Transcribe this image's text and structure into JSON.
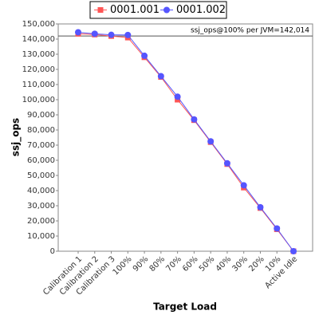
{
  "chart_data": {
    "type": "line",
    "x_label": "Target Load",
    "y_label": "ssj_ops",
    "annotation": "ssj_ops@100% per JVM=142,014",
    "reference_line": 142014,
    "categories": [
      "Calibration 1",
      "Calibration 2",
      "Calibration 3",
      "100%",
      "90%",
      "80%",
      "70%",
      "60%",
      "50%",
      "40%",
      "30%",
      "20%",
      "10%",
      "Active Idle"
    ],
    "series": [
      {
        "name": "0001.001",
        "color": "#ff5555",
        "marker": "square",
        "values": [
          143500,
          143000,
          142000,
          141000,
          128000,
          115000,
          100000,
          86500,
          72000,
          57500,
          42000,
          28500,
          14500,
          0
        ]
      },
      {
        "name": "0001.002",
        "color": "#5555ff",
        "marker": "circle",
        "values": [
          144500,
          143500,
          142800,
          142700,
          129000,
          115500,
          102000,
          87000,
          72500,
          58000,
          43500,
          29000,
          15000,
          0
        ]
      }
    ],
    "ylim": [
      0,
      150000
    ],
    "yticks": [
      {
        "value": 0,
        "label": "0"
      },
      {
        "value": 10000,
        "label": "10,000"
      },
      {
        "value": 20000,
        "label": "20,000"
      },
      {
        "value": 30000,
        "label": "30,000"
      },
      {
        "value": 40000,
        "label": "40,000"
      },
      {
        "value": 50000,
        "label": "50,000"
      },
      {
        "value": 60000,
        "label": "60,000"
      },
      {
        "value": 70000,
        "label": "70,000"
      },
      {
        "value": 80000,
        "label": "80,000"
      },
      {
        "value": 90000,
        "label": "90,000"
      },
      {
        "value": 100000,
        "label": "100,000"
      },
      {
        "value": 110000,
        "label": "110,000"
      },
      {
        "value": 120000,
        "label": "120,000"
      },
      {
        "value": 130000,
        "label": "130,000"
      },
      {
        "value": 140000,
        "label": "140,000"
      },
      {
        "value": 150000,
        "label": "150,000"
      }
    ]
  }
}
